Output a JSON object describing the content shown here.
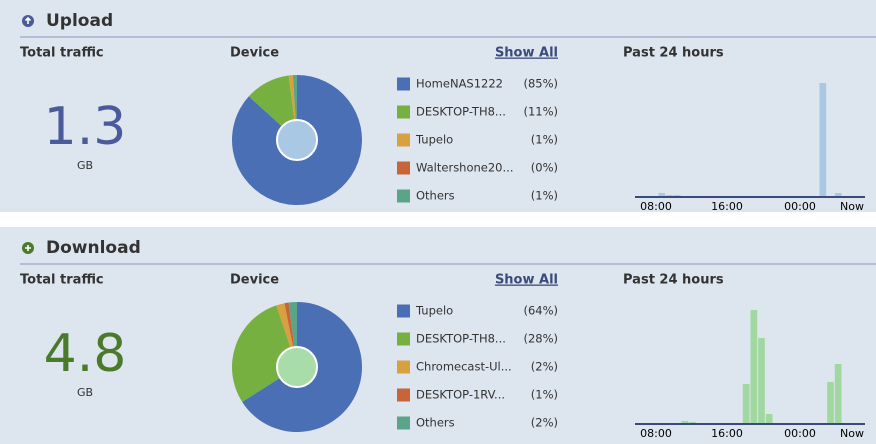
{
  "sections": [
    {
      "title": "Upload",
      "total_label": "Total traffic",
      "total_value": "1.3",
      "unit": "GB",
      "device_label": "Device",
      "show_all": "Show All",
      "past_label": "Past 24 hours",
      "accent": "#4a5a9a",
      "hole": "#a8c8e4",
      "bar_color": "#a8c8e4",
      "pie": {
        "type": "pie",
        "categories": [
          "HomeNAS1222",
          "DESKTOP-TH8...",
          "Tupelo",
          "Waltershone20...",
          "Others"
        ],
        "values": [
          85,
          11,
          1,
          0,
          1
        ],
        "value_labels": [
          "(85%)",
          "(11%)",
          "(1%)",
          "(0%)",
          "(1%)"
        ],
        "colors": [
          "#4a6fb5",
          "#76b041",
          "#d9a040",
          "#c8643a",
          "#5aa58a"
        ]
      },
      "bars": {
        "type": "bar",
        "values": [
          0,
          0,
          0,
          4,
          2,
          2,
          0,
          0,
          0,
          0,
          0,
          0,
          0,
          0,
          0,
          1,
          1,
          0,
          0,
          0,
          0,
          1,
          1,
          1,
          114,
          1,
          4,
          0,
          0,
          0
        ],
        "ylim": [
          0,
          120
        ],
        "x_labels": [
          "08:00",
          "16:00",
          "00:00",
          "Now"
        ]
      }
    },
    {
      "title": "Download",
      "total_label": "Total traffic",
      "total_value": "4.8",
      "unit": "GB",
      "device_label": "Device",
      "show_all": "Show All",
      "past_label": "Past 24 hours",
      "accent": "#4a7a2a",
      "hole": "#a8dca8",
      "bar_color": "#a0d8a0",
      "pie": {
        "type": "pie",
        "categories": [
          "Tupelo",
          "DESKTOP-TH8...",
          "Chromecast-Ul...",
          "DESKTOP-1RV...",
          "Others"
        ],
        "values": [
          64,
          28,
          2,
          1,
          2
        ],
        "value_labels": [
          "(64%)",
          "(28%)",
          "(2%)",
          "(1%)",
          "(2%)"
        ],
        "colors": [
          "#4a6fb5",
          "#76b041",
          "#d9a040",
          "#c8643a",
          "#5aa58a"
        ]
      },
      "bars": {
        "type": "bar",
        "values": [
          0,
          0,
          0,
          0,
          0,
          0,
          3,
          2,
          1,
          1,
          0,
          0,
          0,
          0,
          40,
          114,
          86,
          10,
          0,
          0,
          0,
          0,
          0,
          0,
          0,
          42,
          60,
          0,
          0,
          0
        ],
        "ylim": [
          0,
          120
        ],
        "x_labels": [
          "08:00",
          "16:00",
          "00:00",
          "Now"
        ]
      }
    }
  ]
}
